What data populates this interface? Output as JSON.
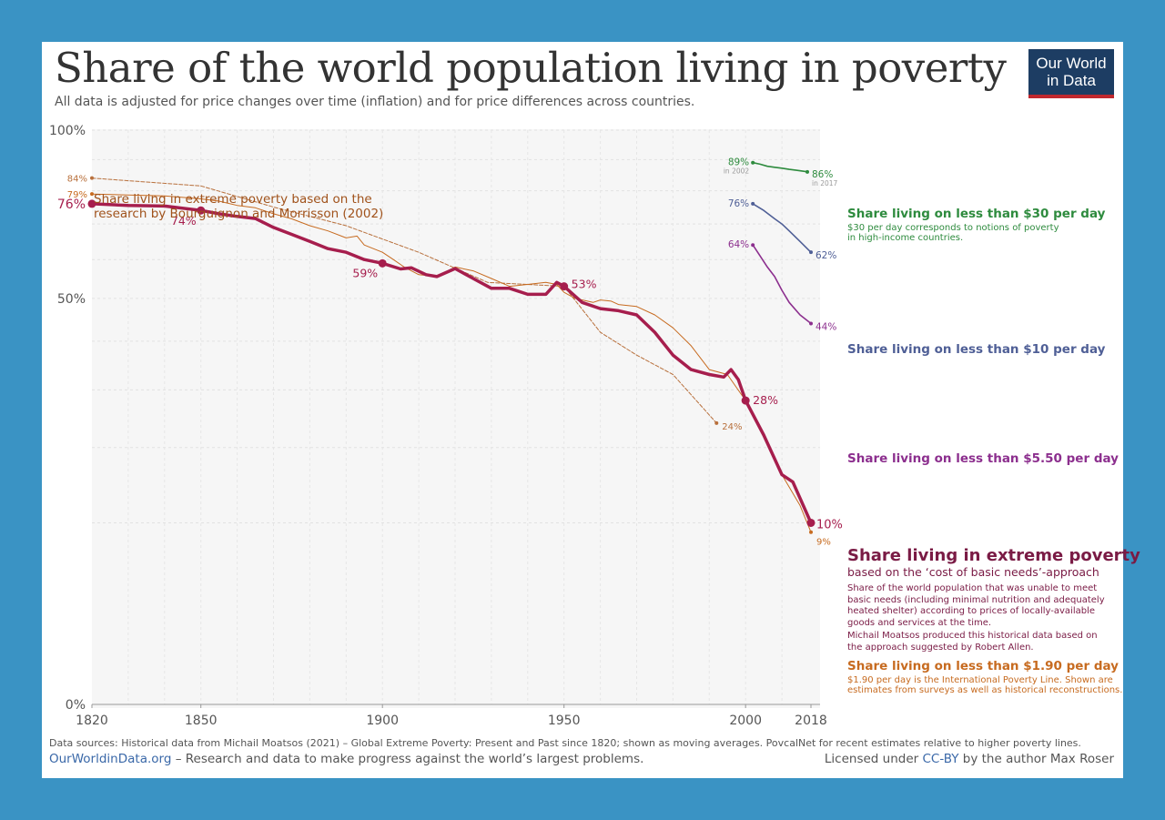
{
  "header": {
    "title": "Share of the world population living in poverty",
    "subtitle": "All data is adjusted for price changes over time (inflation) and for price differences across countries."
  },
  "logo": {
    "line1": "Our World",
    "line2": "in Data",
    "bg": "#1d3d63",
    "accent": "#c0282e"
  },
  "footer": {
    "sources": "Data sources: Historical data from Michail Moatsos (2021) – Global Extreme Poverty: Present and Past since 1820; shown as moving averages. PovcalNet for recent estimates relative to higher poverty lines.",
    "site": "OurWorldinData.org",
    "tagline": " – Research and data to make progress against the world’s largest problems.",
    "license_prefix": "Licensed under ",
    "license_link": "CC-BY",
    "license_suffix": " by the author Max Roser"
  },
  "chart_data": {
    "type": "line",
    "title": "Share of the world population living in poverty",
    "subtitle": "All data is adjusted for price changes over time (inflation) and for price differences across countries.",
    "x_ticks": [
      "1820",
      "1850",
      "1900",
      "1950",
      "2000",
      "2018"
    ],
    "y_ticks": [
      "0%",
      "50%",
      "100%"
    ],
    "xlim": [
      1820,
      2018
    ],
    "ylim": [
      0,
      100
    ],
    "yscale": "sqrt",
    "grid": true,
    "series": [
      {
        "name": "Share living in extreme poverty",
        "color": "#a61e4d",
        "values": [
          [
            1820,
            76
          ],
          [
            1830,
            75.5
          ],
          [
            1840,
            75.3
          ],
          [
            1850,
            74
          ],
          [
            1855,
            73
          ],
          [
            1860,
            72.2
          ],
          [
            1865,
            71.6
          ],
          [
            1870,
            69
          ],
          [
            1875,
            67
          ],
          [
            1880,
            65
          ],
          [
            1885,
            63
          ],
          [
            1890,
            62
          ],
          [
            1895,
            60
          ],
          [
            1900,
            59
          ],
          [
            1905,
            57.5
          ],
          [
            1908,
            57.8
          ],
          [
            1912,
            56
          ],
          [
            1915,
            55.5
          ],
          [
            1920,
            57.6
          ],
          [
            1925,
            55
          ],
          [
            1930,
            52.5
          ],
          [
            1935,
            52.5
          ],
          [
            1940,
            51
          ],
          [
            1945,
            51
          ],
          [
            1948,
            54
          ],
          [
            1950,
            53
          ],
          [
            1955,
            49
          ],
          [
            1960,
            47.5
          ],
          [
            1965,
            47
          ],
          [
            1970,
            46
          ],
          [
            1975,
            42
          ],
          [
            1980,
            37
          ],
          [
            1985,
            34
          ],
          [
            1990,
            33
          ],
          [
            1994,
            32.5
          ],
          [
            1996,
            34
          ],
          [
            1998,
            32
          ],
          [
            2000,
            28
          ],
          [
            2005,
            22
          ],
          [
            2010,
            16
          ],
          [
            2013,
            15
          ],
          [
            2018,
            10
          ]
        ],
        "labels": [
          {
            "x": 1820,
            "text": "76%"
          },
          {
            "x": 1850,
            "text": "74%"
          },
          {
            "x": 1900,
            "text": "59%"
          },
          {
            "x": 1950,
            "text": "53%"
          },
          {
            "x": 2000,
            "text": "28%"
          },
          {
            "x": 2018,
            "text": "10%"
          }
        ]
      },
      {
        "name": "Share living on less than $1.90 per day",
        "color": "#c76b20",
        "values": [
          [
            1820,
            79
          ],
          [
            1830,
            78.7
          ],
          [
            1840,
            78.4
          ],
          [
            1850,
            77.5
          ],
          [
            1855,
            76.8
          ],
          [
            1860,
            75.5
          ],
          [
            1865,
            74.8
          ],
          [
            1870,
            73
          ],
          [
            1875,
            71.5
          ],
          [
            1880,
            69.5
          ],
          [
            1885,
            68
          ],
          [
            1890,
            66
          ],
          [
            1893,
            66.5
          ],
          [
            1895,
            64
          ],
          [
            1900,
            62
          ],
          [
            1903,
            60
          ],
          [
            1906,
            58
          ],
          [
            1910,
            56
          ],
          [
            1915,
            55.5
          ],
          [
            1918,
            57
          ],
          [
            1920,
            58
          ],
          [
            1925,
            57
          ],
          [
            1930,
            55
          ],
          [
            1935,
            53
          ],
          [
            1940,
            53.5
          ],
          [
            1945,
            54
          ],
          [
            1948,
            53.5
          ],
          [
            1950,
            51.5
          ],
          [
            1953,
            50
          ],
          [
            1958,
            49
          ],
          [
            1960,
            49.6
          ],
          [
            1963,
            49.3
          ],
          [
            1965,
            48.5
          ],
          [
            1970,
            48
          ],
          [
            1975,
            46
          ],
          [
            1980,
            43
          ],
          [
            1985,
            39
          ],
          [
            1990,
            34
          ],
          [
            1995,
            33
          ],
          [
            2000,
            28
          ],
          [
            2005,
            22
          ],
          [
            2010,
            16
          ],
          [
            2015,
            12
          ],
          [
            2018,
            9
          ]
        ],
        "labels": [
          {
            "x": 1820,
            "text": "79%"
          },
          {
            "x": 2018,
            "text": "9%"
          }
        ]
      },
      {
        "name": "Share living in extreme poverty based on the research by Bourguignon and Morrisson (2002)",
        "color": "#b8703c",
        "dashed": true,
        "values": [
          [
            1820,
            84
          ],
          [
            1850,
            81.5
          ],
          [
            1870,
            75
          ],
          [
            1890,
            69.5
          ],
          [
            1910,
            62
          ],
          [
            1929,
            54
          ],
          [
            1950,
            53
          ],
          [
            1960,
            42
          ],
          [
            1970,
            37
          ],
          [
            1980,
            33
          ],
          [
            1992,
            24
          ]
        ],
        "labels": [
          {
            "x": 1820,
            "text": "84%"
          },
          {
            "x": 1992,
            "text": "24%"
          }
        ]
      },
      {
        "name": "Share living on less than $30 per day",
        "color": "#2e8b3e",
        "values": [
          [
            2002,
            89
          ],
          [
            2004,
            88.5
          ],
          [
            2006,
            87.8
          ],
          [
            2008,
            87.5
          ],
          [
            2010,
            87.2
          ],
          [
            2012,
            86.8
          ],
          [
            2014,
            86.5
          ],
          [
            2016,
            86.2
          ],
          [
            2017,
            86
          ]
        ],
        "labels": [
          {
            "x": 2002,
            "text": "89%",
            "note": "in 2002"
          },
          {
            "x": 2017,
            "text": "86%",
            "note": "in 2017"
          }
        ]
      },
      {
        "name": "Share living on less than $10 per day",
        "color": "#4f5f96",
        "values": [
          [
            2002,
            76
          ],
          [
            2005,
            74
          ],
          [
            2008,
            71.5
          ],
          [
            2010,
            70
          ],
          [
            2012,
            68
          ],
          [
            2015,
            65
          ],
          [
            2018,
            62
          ]
        ],
        "labels": [
          {
            "x": 2002,
            "text": "76%"
          },
          {
            "x": 2018,
            "text": "62%"
          }
        ]
      },
      {
        "name": "Share living on less than $5.50 per day",
        "color": "#8c2f8e",
        "values": [
          [
            2002,
            64
          ],
          [
            2004,
            61
          ],
          [
            2006,
            58
          ],
          [
            2008,
            55.5
          ],
          [
            2010,
            52
          ],
          [
            2012,
            49
          ],
          [
            2015,
            46
          ],
          [
            2018,
            44
          ]
        ],
        "labels": [
          {
            "x": 2002,
            "text": "64%"
          },
          {
            "x": 2018,
            "text": "44%"
          }
        ]
      }
    ],
    "annotations": {
      "bm_label_line1": "Share living in extreme poverty based on the",
      "bm_label_line2": "research by Bourguignon and Morrisson (2002)",
      "d30_title": "Share living on less than $30 per day",
      "d30_desc1": "$30 per day corresponds to notions of poverty",
      "d30_desc2": "in high-income countries.",
      "d10_title": "Share living on less than $10 per day",
      "d550_title": "Share living on less than $5.50 per day",
      "ext_title": "Share living in extreme poverty",
      "ext_sub": "based on the ‘cost of basic needs’-approach",
      "ext_desc1": "Share of the world population that was unable to meet",
      "ext_desc2": "basic needs (including minimal nutrition and adequately",
      "ext_desc3": "heated shelter) according to prices of locally-available",
      "ext_desc4": "goods and services at the time.",
      "ext_desc5": "Michail Moatsos produced this historical data based on",
      "ext_desc6": "the approach suggested by Robert Allen.",
      "d190_title": "Share living on less than $1.90 per day",
      "d190_desc1": "$1.90 per day is the International Poverty Line. Shown are",
      "d190_desc2": "estimates from surveys as well as historical reconstructions."
    }
  }
}
